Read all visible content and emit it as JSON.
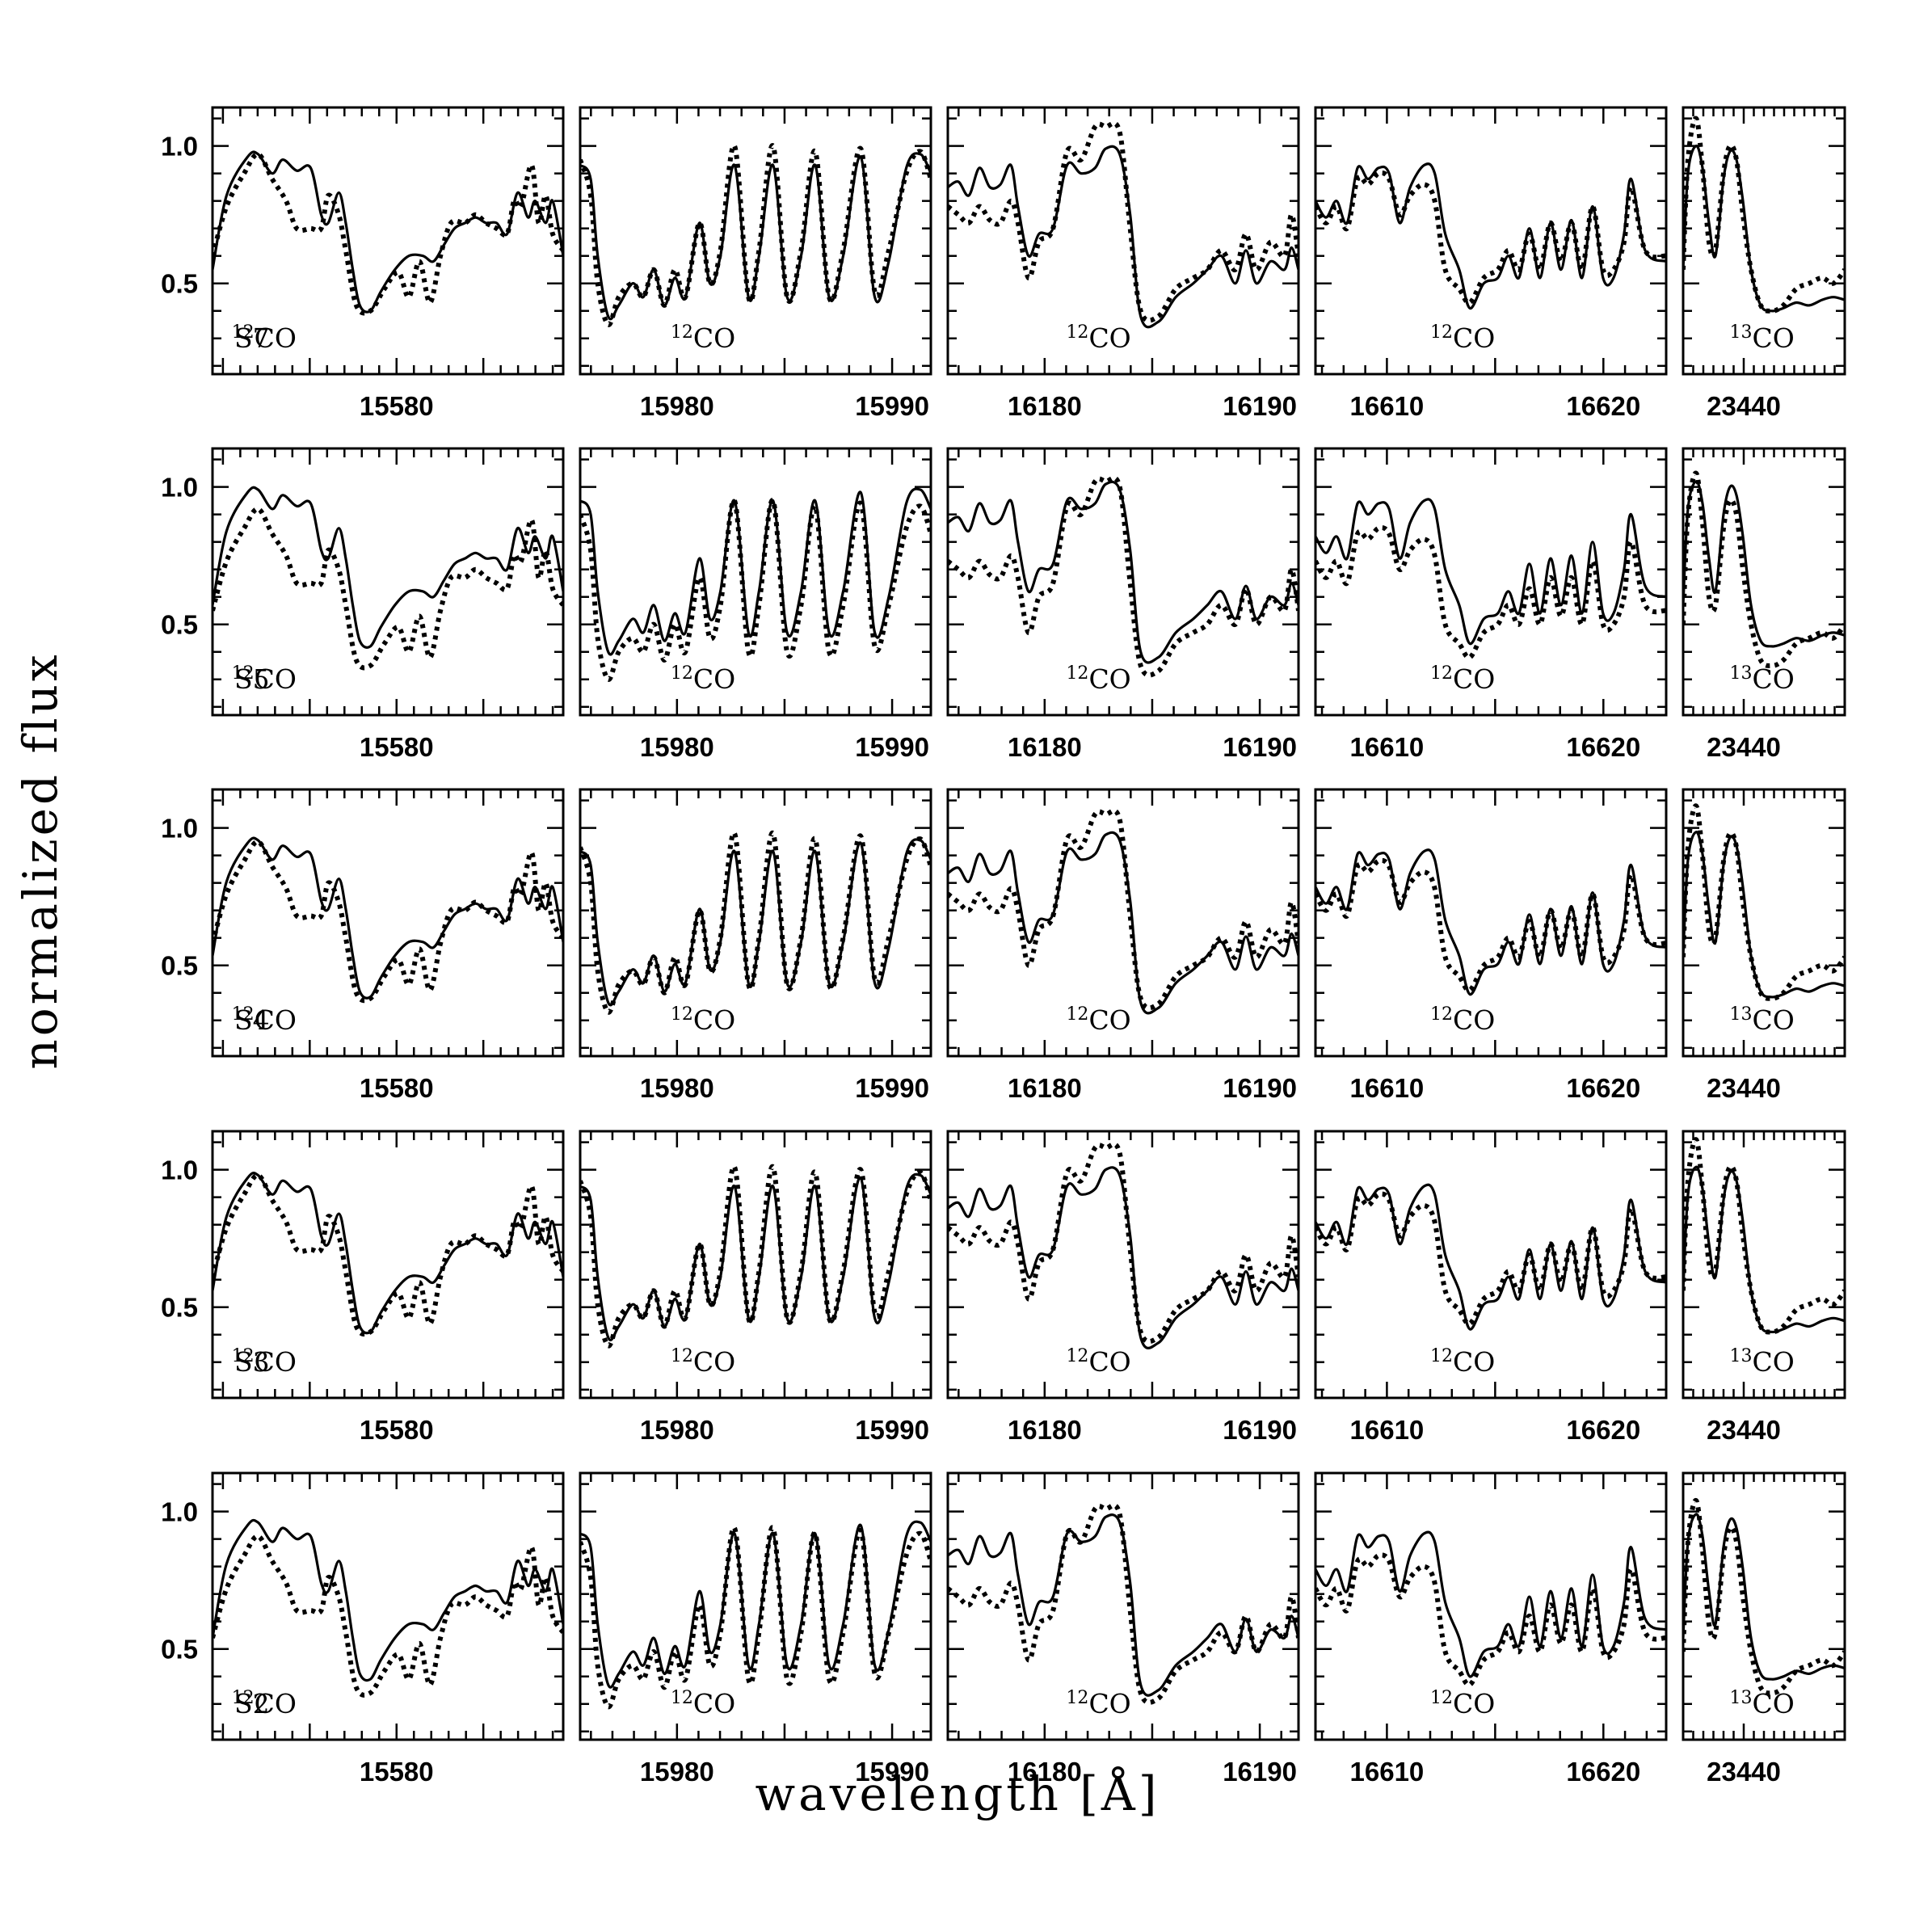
{
  "chart_data": {
    "type": "line",
    "xlabel": "wavelength [Å]",
    "ylabel": "normalized flux",
    "ylim": [
      0.17,
      1.14
    ],
    "yticks": [
      0.5,
      1.0
    ],
    "ytick_labels": [
      "0.5",
      "1.0"
    ],
    "rows": [
      "S7",
      "S5",
      "S4",
      "S3",
      "S2"
    ],
    "series_styles": [
      "solid",
      "dotted"
    ],
    "windows": [
      {
        "xlim": [
          15569.4,
          15589.6
        ],
        "xticks": [
          15580
        ],
        "xtick_labels": [
          "15580"
        ],
        "label": "12CO",
        "label_x": 15570.5,
        "label_iso": "12"
      },
      {
        "xlim": [
          15975.5,
          15991.8
        ],
        "xticks": [
          15980,
          15990
        ],
        "xtick_labels": [
          "15980",
          "15990"
        ],
        "label": "12CO",
        "label_x": 15979.7,
        "label_iso": "12"
      },
      {
        "xlim": [
          16175.5,
          16191.8
        ],
        "xticks": [
          16180,
          16190
        ],
        "xtick_labels": [
          "16180",
          "16190"
        ],
        "label": "12CO",
        "label_x": 16181.0,
        "label_iso": "12"
      },
      {
        "xlim": [
          16606.7,
          16622.9
        ],
        "xticks": [
          16610,
          16620
        ],
        "xtick_labels": [
          "16610",
          "16620"
        ],
        "label": "12CO",
        "label_x": 16612.0,
        "label_iso": "12"
      },
      {
        "xlim": [
          23437.0,
          23445.0
        ],
        "xticks": [
          23440
        ],
        "xtick_labels": [
          "23440"
        ],
        "label": "13CO",
        "label_x": 23439.3,
        "label_iso": "13"
      }
    ],
    "spectra": {
      "solid": [
        [
          [
            0,
            0.55
          ],
          [
            0.04,
            0.82
          ],
          [
            0.1,
            0.96
          ],
          [
            0.13,
            0.97
          ],
          [
            0.17,
            0.9
          ],
          [
            0.2,
            0.95
          ],
          [
            0.24,
            0.91
          ],
          [
            0.28,
            0.92
          ],
          [
            0.31,
            0.75
          ],
          [
            0.33,
            0.72
          ],
          [
            0.36,
            0.83
          ],
          [
            0.38,
            0.72
          ],
          [
            0.4,
            0.55
          ],
          [
            0.42,
            0.42
          ],
          [
            0.45,
            0.4
          ],
          [
            0.48,
            0.47
          ],
          [
            0.52,
            0.55
          ],
          [
            0.56,
            0.6
          ],
          [
            0.6,
            0.6
          ],
          [
            0.63,
            0.58
          ],
          [
            0.66,
            0.64
          ],
          [
            0.69,
            0.7
          ],
          [
            0.72,
            0.72
          ],
          [
            0.75,
            0.74
          ],
          [
            0.78,
            0.72
          ],
          [
            0.81,
            0.72
          ],
          [
            0.84,
            0.68
          ],
          [
            0.87,
            0.83
          ],
          [
            0.9,
            0.74
          ],
          [
            0.92,
            0.8
          ],
          [
            0.95,
            0.72
          ],
          [
            0.97,
            0.8
          ],
          [
            1,
            0.6
          ]
        ],
        [
          [
            0,
            0.93
          ],
          [
            0.03,
            0.88
          ],
          [
            0.05,
            0.6
          ],
          [
            0.08,
            0.38
          ],
          [
            0.11,
            0.42
          ],
          [
            0.15,
            0.5
          ],
          [
            0.18,
            0.45
          ],
          [
            0.21,
            0.55
          ],
          [
            0.24,
            0.42
          ],
          [
            0.27,
            0.52
          ],
          [
            0.3,
            0.45
          ],
          [
            0.34,
            0.72
          ],
          [
            0.37,
            0.5
          ],
          [
            0.4,
            0.6
          ],
          [
            0.44,
            0.93
          ],
          [
            0.48,
            0.45
          ],
          [
            0.51,
            0.6
          ],
          [
            0.55,
            0.93
          ],
          [
            0.59,
            0.45
          ],
          [
            0.63,
            0.6
          ],
          [
            0.67,
            0.93
          ],
          [
            0.71,
            0.45
          ],
          [
            0.75,
            0.6
          ],
          [
            0.8,
            0.96
          ],
          [
            0.84,
            0.45
          ],
          [
            0.88,
            0.58
          ],
          [
            0.93,
            0.92
          ],
          [
            0.97,
            0.97
          ],
          [
            1,
            0.9
          ]
        ],
        [
          [
            0,
            0.85
          ],
          [
            0.03,
            0.87
          ],
          [
            0.06,
            0.82
          ],
          [
            0.09,
            0.92
          ],
          [
            0.12,
            0.85
          ],
          [
            0.15,
            0.86
          ],
          [
            0.18,
            0.93
          ],
          [
            0.2,
            0.78
          ],
          [
            0.23,
            0.6
          ],
          [
            0.26,
            0.68
          ],
          [
            0.3,
            0.7
          ],
          [
            0.34,
            0.93
          ],
          [
            0.38,
            0.9
          ],
          [
            0.42,
            0.92
          ],
          [
            0.45,
            0.99
          ],
          [
            0.49,
            0.97
          ],
          [
            0.52,
            0.75
          ],
          [
            0.55,
            0.38
          ],
          [
            0.6,
            0.36
          ],
          [
            0.65,
            0.45
          ],
          [
            0.7,
            0.5
          ],
          [
            0.74,
            0.55
          ],
          [
            0.78,
            0.6
          ],
          [
            0.82,
            0.5
          ],
          [
            0.85,
            0.62
          ],
          [
            0.88,
            0.5
          ],
          [
            0.92,
            0.58
          ],
          [
            0.96,
            0.55
          ],
          [
            0.98,
            0.63
          ],
          [
            1,
            0.55
          ]
        ],
        [
          [
            0,
            0.8
          ],
          [
            0.03,
            0.74
          ],
          [
            0.06,
            0.8
          ],
          [
            0.09,
            0.72
          ],
          [
            0.12,
            0.92
          ],
          [
            0.15,
            0.88
          ],
          [
            0.18,
            0.92
          ],
          [
            0.21,
            0.9
          ],
          [
            0.24,
            0.72
          ],
          [
            0.27,
            0.85
          ],
          [
            0.31,
            0.93
          ],
          [
            0.34,
            0.9
          ],
          [
            0.37,
            0.68
          ],
          [
            0.41,
            0.55
          ],
          [
            0.44,
            0.41
          ],
          [
            0.48,
            0.5
          ],
          [
            0.52,
            0.52
          ],
          [
            0.55,
            0.6
          ],
          [
            0.58,
            0.52
          ],
          [
            0.61,
            0.7
          ],
          [
            0.64,
            0.52
          ],
          [
            0.67,
            0.72
          ],
          [
            0.7,
            0.55
          ],
          [
            0.73,
            0.73
          ],
          [
            0.76,
            0.52
          ],
          [
            0.79,
            0.78
          ],
          [
            0.82,
            0.52
          ],
          [
            0.85,
            0.52
          ],
          [
            0.88,
            0.68
          ],
          [
            0.9,
            0.88
          ],
          [
            0.94,
            0.62
          ],
          [
            1,
            0.58
          ]
        ],
        [
          [
            0,
            0.55
          ],
          [
            0.03,
            0.9
          ],
          [
            0.08,
            1.0
          ],
          [
            0.12,
            0.92
          ],
          [
            0.16,
            0.72
          ],
          [
            0.2,
            0.6
          ],
          [
            0.25,
            0.88
          ],
          [
            0.29,
            0.98
          ],
          [
            0.33,
            0.95
          ],
          [
            0.37,
            0.8
          ],
          [
            0.42,
            0.55
          ],
          [
            0.48,
            0.42
          ],
          [
            0.55,
            0.4
          ],
          [
            0.62,
            0.41
          ],
          [
            0.7,
            0.43
          ],
          [
            0.78,
            0.42
          ],
          [
            0.86,
            0.44
          ],
          [
            0.93,
            0.45
          ],
          [
            1,
            0.44
          ]
        ]
      ],
      "dotted": [
        [
          [
            0,
            0.6
          ],
          [
            0.04,
            0.78
          ],
          [
            0.09,
            0.9
          ],
          [
            0.13,
            0.97
          ],
          [
            0.17,
            0.88
          ],
          [
            0.21,
            0.8
          ],
          [
            0.24,
            0.7
          ],
          [
            0.28,
            0.7
          ],
          [
            0.31,
            0.7
          ],
          [
            0.33,
            0.82
          ],
          [
            0.36,
            0.75
          ],
          [
            0.38,
            0.62
          ],
          [
            0.41,
            0.42
          ],
          [
            0.45,
            0.4
          ],
          [
            0.49,
            0.48
          ],
          [
            0.53,
            0.54
          ],
          [
            0.56,
            0.45
          ],
          [
            0.59,
            0.58
          ],
          [
            0.62,
            0.43
          ],
          [
            0.65,
            0.6
          ],
          [
            0.68,
            0.72
          ],
          [
            0.72,
            0.72
          ],
          [
            0.75,
            0.75
          ],
          [
            0.78,
            0.72
          ],
          [
            0.81,
            0.7
          ],
          [
            0.84,
            0.68
          ],
          [
            0.86,
            0.8
          ],
          [
            0.88,
            0.78
          ],
          [
            0.91,
            0.93
          ],
          [
            0.93,
            0.72
          ],
          [
            0.95,
            0.82
          ],
          [
            0.97,
            0.68
          ],
          [
            1,
            0.62
          ]
        ],
        [
          [
            0,
            0.95
          ],
          [
            0.03,
            0.82
          ],
          [
            0.05,
            0.5
          ],
          [
            0.08,
            0.35
          ],
          [
            0.11,
            0.45
          ],
          [
            0.15,
            0.5
          ],
          [
            0.18,
            0.45
          ],
          [
            0.21,
            0.55
          ],
          [
            0.24,
            0.42
          ],
          [
            0.27,
            0.55
          ],
          [
            0.3,
            0.45
          ],
          [
            0.34,
            0.72
          ],
          [
            0.37,
            0.5
          ],
          [
            0.4,
            0.62
          ],
          [
            0.44,
            1.0
          ],
          [
            0.48,
            0.45
          ],
          [
            0.51,
            0.62
          ],
          [
            0.55,
            1.0
          ],
          [
            0.59,
            0.45
          ],
          [
            0.63,
            0.62
          ],
          [
            0.67,
            0.98
          ],
          [
            0.71,
            0.45
          ],
          [
            0.75,
            0.62
          ],
          [
            0.8,
            0.99
          ],
          [
            0.84,
            0.47
          ],
          [
            0.88,
            0.62
          ],
          [
            0.93,
            0.9
          ],
          [
            0.97,
            0.98
          ],
          [
            1,
            0.88
          ]
        ],
        [
          [
            0,
            0.78
          ],
          [
            0.03,
            0.75
          ],
          [
            0.06,
            0.72
          ],
          [
            0.09,
            0.78
          ],
          [
            0.12,
            0.73
          ],
          [
            0.15,
            0.72
          ],
          [
            0.18,
            0.8
          ],
          [
            0.2,
            0.72
          ],
          [
            0.23,
            0.52
          ],
          [
            0.26,
            0.65
          ],
          [
            0.3,
            0.7
          ],
          [
            0.34,
            0.98
          ],
          [
            0.38,
            0.95
          ],
          [
            0.42,
            1.07
          ],
          [
            0.45,
            1.07
          ],
          [
            0.49,
            1.05
          ],
          [
            0.52,
            0.7
          ],
          [
            0.55,
            0.4
          ],
          [
            0.6,
            0.38
          ],
          [
            0.65,
            0.48
          ],
          [
            0.7,
            0.52
          ],
          [
            0.74,
            0.55
          ],
          [
            0.78,
            0.62
          ],
          [
            0.82,
            0.55
          ],
          [
            0.85,
            0.68
          ],
          [
            0.88,
            0.55
          ],
          [
            0.92,
            0.65
          ],
          [
            0.96,
            0.6
          ],
          [
            0.98,
            0.75
          ],
          [
            1,
            0.6
          ]
        ],
        [
          [
            0,
            0.78
          ],
          [
            0.03,
            0.72
          ],
          [
            0.06,
            0.78
          ],
          [
            0.09,
            0.7
          ],
          [
            0.12,
            0.88
          ],
          [
            0.15,
            0.86
          ],
          [
            0.18,
            0.9
          ],
          [
            0.21,
            0.88
          ],
          [
            0.24,
            0.75
          ],
          [
            0.27,
            0.82
          ],
          [
            0.31,
            0.86
          ],
          [
            0.34,
            0.8
          ],
          [
            0.37,
            0.55
          ],
          [
            0.41,
            0.48
          ],
          [
            0.44,
            0.43
          ],
          [
            0.48,
            0.52
          ],
          [
            0.52,
            0.55
          ],
          [
            0.55,
            0.62
          ],
          [
            0.58,
            0.55
          ],
          [
            0.61,
            0.68
          ],
          [
            0.64,
            0.55
          ],
          [
            0.67,
            0.72
          ],
          [
            0.7,
            0.58
          ],
          [
            0.73,
            0.72
          ],
          [
            0.76,
            0.55
          ],
          [
            0.79,
            0.78
          ],
          [
            0.82,
            0.55
          ],
          [
            0.85,
            0.55
          ],
          [
            0.88,
            0.65
          ],
          [
            0.9,
            0.85
          ],
          [
            0.94,
            0.62
          ],
          [
            1,
            0.6
          ]
        ],
        [
          [
            0,
            0.55
          ],
          [
            0.03,
            0.95
          ],
          [
            0.08,
            1.1
          ],
          [
            0.12,
            0.92
          ],
          [
            0.16,
            0.65
          ],
          [
            0.2,
            0.62
          ],
          [
            0.25,
            0.9
          ],
          [
            0.29,
            1.0
          ],
          [
            0.33,
            0.95
          ],
          [
            0.37,
            0.75
          ],
          [
            0.42,
            0.55
          ],
          [
            0.48,
            0.42
          ],
          [
            0.55,
            0.4
          ],
          [
            0.62,
            0.42
          ],
          [
            0.7,
            0.48
          ],
          [
            0.78,
            0.5
          ],
          [
            0.86,
            0.52
          ],
          [
            0.93,
            0.5
          ],
          [
            1,
            0.55
          ]
        ]
      ]
    }
  }
}
